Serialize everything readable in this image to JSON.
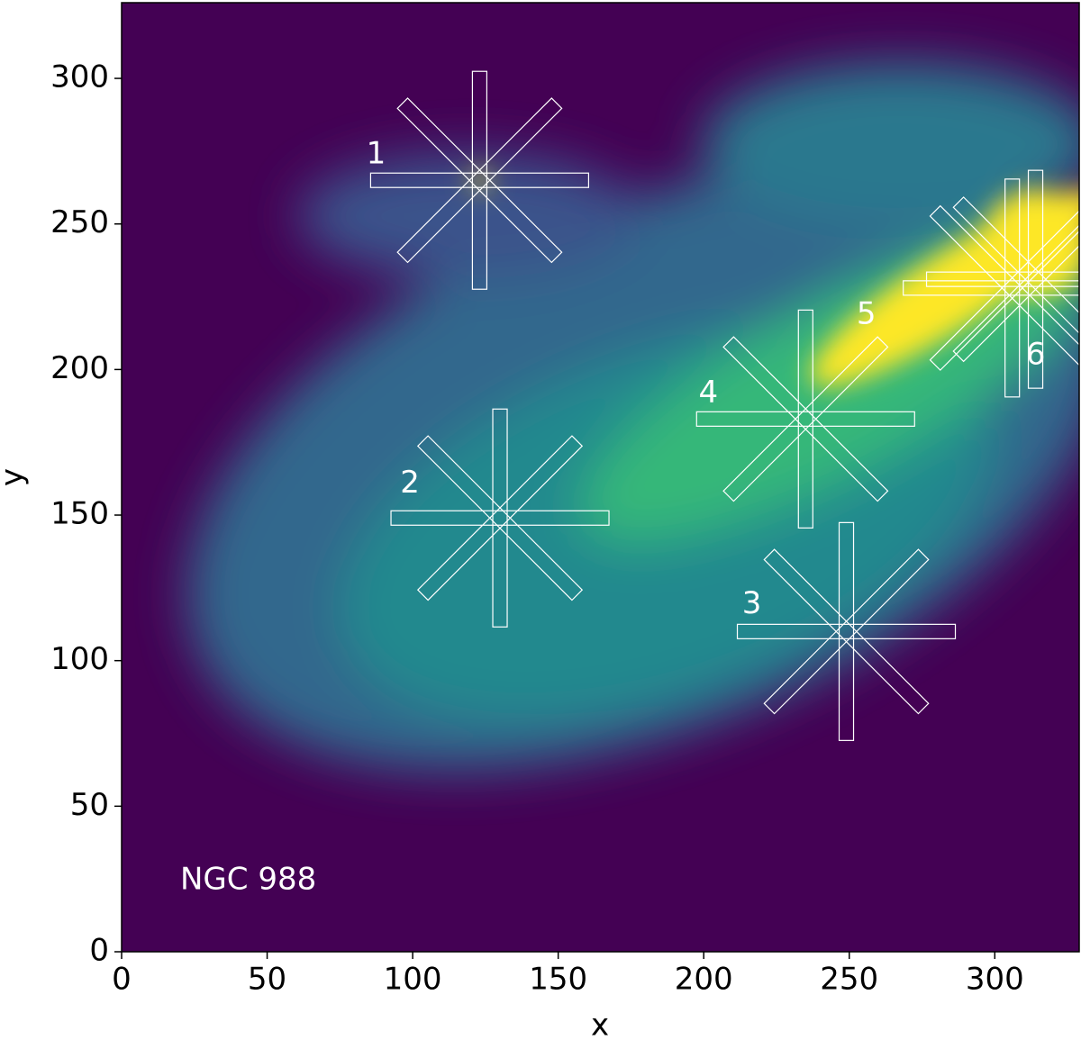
{
  "chart_data": {
    "type": "image",
    "annotation": "NGC 988",
    "x_label": "x",
    "y_label": "y",
    "xlim": [
      0,
      329
    ],
    "ylim": [
      0,
      326
    ],
    "xticks": [
      0,
      50,
      100,
      150,
      200,
      250,
      300
    ],
    "yticks": [
      0,
      50,
      100,
      150,
      200,
      250,
      300
    ],
    "background_color": "#440154",
    "aperture_color": "#ffffff",
    "apertures": [
      {
        "label": "1",
        "x": 123,
        "y": 265
      },
      {
        "label": "2",
        "x": 130,
        "y": 149
      },
      {
        "label": "3",
        "x": 249,
        "y": 110
      },
      {
        "label": "4",
        "x": 235,
        "y": 183
      },
      {
        "label": "5",
        "x": 306,
        "y": 228
      },
      {
        "label": "6",
        "x": 314,
        "y": 231
      }
    ]
  }
}
